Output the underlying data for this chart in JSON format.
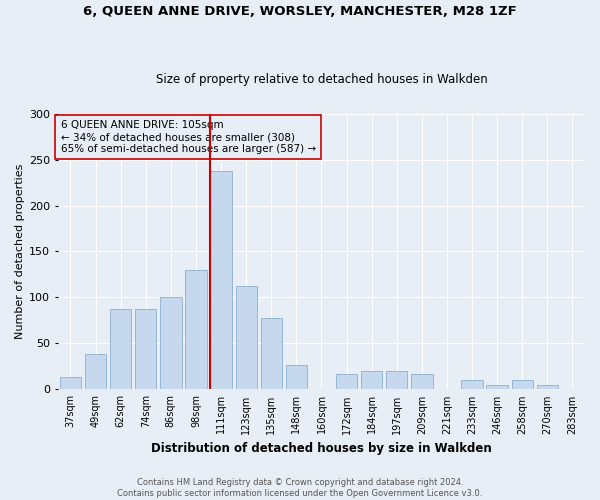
{
  "title": "6, QUEEN ANNE DRIVE, WORSLEY, MANCHESTER, M28 1ZF",
  "subtitle": "Size of property relative to detached houses in Walkden",
  "xlabel": "Distribution of detached houses by size in Walkden",
  "ylabel": "Number of detached properties",
  "footnote1": "Contains HM Land Registry data © Crown copyright and database right 2024.",
  "footnote2": "Contains public sector information licensed under the Open Government Licence v3.0.",
  "annotation_line1": "6 QUEEN ANNE DRIVE: 105sqm",
  "annotation_line2": "← 34% of detached houses are smaller (308)",
  "annotation_line3": "65% of semi-detached houses are larger (587) →",
  "bar_labels": [
    "37sqm",
    "49sqm",
    "62sqm",
    "74sqm",
    "86sqm",
    "98sqm",
    "111sqm",
    "123sqm",
    "135sqm",
    "148sqm",
    "160sqm",
    "172sqm",
    "184sqm",
    "197sqm",
    "209sqm",
    "221sqm",
    "233sqm",
    "246sqm",
    "258sqm",
    "270sqm",
    "283sqm"
  ],
  "bar_heights": [
    13,
    38,
    88,
    88,
    101,
    130,
    238,
    112,
    78,
    27,
    0,
    17,
    20,
    20,
    17,
    0,
    10,
    5,
    10,
    5,
    0
  ],
  "bar_color": "#c5d8ed",
  "bar_edge_color": "#8aafd0",
  "vline_color": "#cc0000",
  "bg_color": "#e8eef5",
  "grid_color": "#ffffff",
  "ylim": [
    0,
    300
  ],
  "yticks": [
    0,
    50,
    100,
    150,
    200,
    250,
    300
  ],
  "title_fontsize": 9.5,
  "subtitle_fontsize": 8.5,
  "ylabel_fontsize": 8,
  "xlabel_fontsize": 8.5,
  "tick_fontsize": 7,
  "annot_fontsize": 7.5,
  "footnote_fontsize": 6
}
